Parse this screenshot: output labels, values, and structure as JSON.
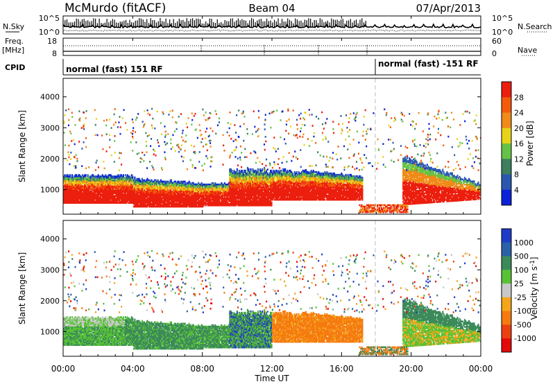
{
  "header": {
    "station": "McMurdo (fitACF)",
    "beam": "Beam 04",
    "date": "07/Apr/2013"
  },
  "noise_panel": {
    "left_label": "N.Sky",
    "right_label": "N.Search",
    "left_ticks": [
      "10^5",
      "10^0"
    ],
    "right_ticks": [
      "10^5",
      "10^0"
    ]
  },
  "freq_panel": {
    "left_label_line1": "Freq.",
    "left_label_line2": "[MHz]",
    "left_ticks": [
      "18",
      "8"
    ],
    "right_ticks": [
      "60",
      "0"
    ],
    "right_label": "Nave"
  },
  "cpid_panel": {
    "label": "CPID",
    "modes": [
      {
        "text": "normal (fast) 151 RF",
        "start_hour": 0
      },
      {
        "text": "normal (fast) -151 RF",
        "start_hour": 17.8
      }
    ]
  },
  "chart_data": [
    {
      "type": "heatmap",
      "name": "power",
      "ylabel": "Slant Range [km]",
      "ylim": [
        200,
        4600
      ],
      "y_ticks": [
        1000,
        2000,
        3000,
        4000
      ],
      "xlim": [
        0,
        24
      ],
      "colorbar": {
        "label": "Power [dB]",
        "ticks": [
          "4",
          "8",
          "12",
          "16",
          "20",
          "24",
          "28"
        ],
        "colors": [
          "#0b22d8",
          "#2a58b0",
          "#3d7f5e",
          "#66c246",
          "#e8d318",
          "#f08a18",
          "#f45a0c",
          "#ec1e0e"
        ]
      }
    },
    {
      "type": "heatmap",
      "name": "velocity",
      "ylabel": "Slant Range [km]",
      "ylim": [
        200,
        4600
      ],
      "y_ticks": [
        1000,
        2000,
        3000,
        4000
      ],
      "xlim": [
        0,
        24
      ],
      "colorbar": {
        "label": "Velocity [m s",
        "label_sup": "-1",
        "label_close": "]",
        "ticks": [
          "1000",
          "500",
          "100",
          "25",
          "-25",
          "-100",
          "-500",
          "-1000"
        ],
        "colors": [
          "#1e3cc8",
          "#2a60a8",
          "#3c8a5a",
          "#58c236",
          "#c8c8c8",
          "#f4a61a",
          "#f57a10",
          "#ec4010",
          "#e40a0a"
        ]
      }
    }
  ],
  "x_axis": {
    "label": "Time UT",
    "ticks": [
      "00:00",
      "04:00",
      "08:00",
      "12:00",
      "16:00",
      "20:00",
      "00:00"
    ]
  }
}
